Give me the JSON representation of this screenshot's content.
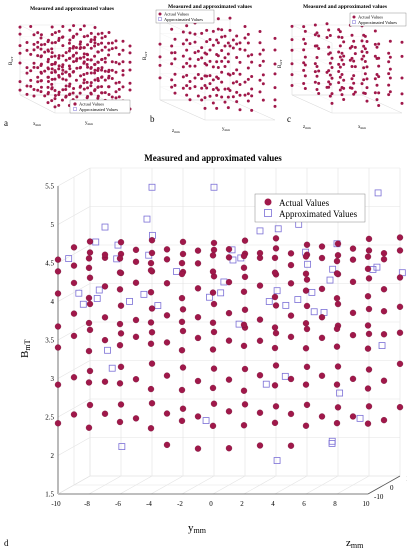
{
  "chart_data": [
    {
      "panel": "a",
      "type": "scatter",
      "title": "Measured and approximated values",
      "xlabel": "x_mm",
      "ylabel": "y_mm",
      "zlabel": "B_mT",
      "legend": [
        "Actual Values",
        "Approximated Values"
      ],
      "legend_placement": "bottom-right",
      "grid": true,
      "series": [
        {
          "name": "Actual Values",
          "marker": "filled-circle",
          "color": "#A0184A"
        },
        {
          "name": "Approximated Values",
          "marker": "open-square",
          "color": "#7B6FD6"
        }
      ]
    },
    {
      "panel": "b",
      "type": "scatter",
      "title": "Measured and approximated values",
      "xlabel": "z_mm",
      "ylabel": "y_mm",
      "zlabel": "B_mT",
      "legend": [
        "Actual Values",
        "Approximated Values"
      ],
      "legend_placement": "top-left",
      "grid": true,
      "series": [
        {
          "name": "Actual Values",
          "marker": "filled-circle",
          "color": "#A0184A"
        },
        {
          "name": "Approximated Values",
          "marker": "open-square",
          "color": "#7B6FD6"
        }
      ]
    },
    {
      "panel": "c",
      "type": "scatter",
      "title": "Measured and approximated values",
      "xlabel": "z_mm",
      "ylabel": "x_mm",
      "zlabel": "B_mT",
      "legend": [
        "Actual Values",
        "Approximated Values"
      ],
      "legend_placement": "top-right",
      "grid": true,
      "series": [
        {
          "name": "Actual Values",
          "marker": "filled-circle",
          "color": "#A0184A"
        },
        {
          "name": "Approximated Values",
          "marker": "open-square",
          "color": "#7B6FD6"
        }
      ]
    },
    {
      "panel": "d",
      "type": "scatter",
      "title": "Measured and approximated values",
      "xlabel": "y_mm",
      "ylabel": "z_mm",
      "zlabel": "B_mT",
      "xlim": [
        -10,
        10
      ],
      "ylim": [
        -10,
        10
      ],
      "zlim": [
        1.5,
        5.5
      ],
      "x_ticks": [
        "-10",
        "-8",
        "-6",
        "-4",
        "-2",
        "0",
        "2",
        "4",
        "6",
        "8",
        "10"
      ],
      "y_ticks": [
        "-10",
        "0",
        "10"
      ],
      "z_ticks": [
        "1.5",
        "2",
        "2.5",
        "3",
        "3.5",
        "4",
        "4.5",
        "5",
        "5.5"
      ],
      "legend": [
        "Actual Values",
        "Approximated Values"
      ],
      "legend_placement": "top-right",
      "grid": true,
      "actual_levels_B": [
        2.4,
        2.9,
        3.4,
        3.7,
        4.1,
        4.4,
        4.55
      ],
      "series": [
        {
          "name": "Actual Values",
          "marker": "filled-circle",
          "color": "#A0184A"
        },
        {
          "name": "Approximated Values",
          "marker": "open-square",
          "color": "#7B6FD6"
        }
      ]
    }
  ],
  "panel_labels": [
    "a",
    "b",
    "c",
    "d"
  ],
  "colors": {
    "actual": "#A0184A",
    "approx": "#7B6FD6",
    "grid": "#e3e3e3",
    "axis": "#555555"
  }
}
